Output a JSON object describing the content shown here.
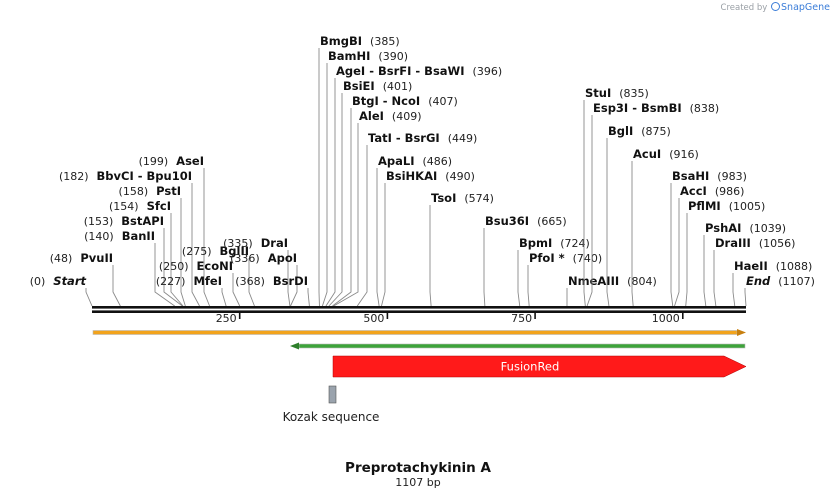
{
  "credit": {
    "prefix": "Created by",
    "brand": "SnapGene"
  },
  "sequence": {
    "name": "Preprotachykinin A",
    "length_label": "1107 bp",
    "length": 1107
  },
  "axis": {
    "ticks": [
      250,
      500,
      750,
      1000
    ]
  },
  "sites": [
    {
      "name": "BmgBI",
      "pos": 385
    },
    {
      "name": "BamHI",
      "pos": 390
    },
    {
      "name": "AgeI - BsrFI - BsaWI",
      "pos": 396
    },
    {
      "name": "BsiEI",
      "pos": 401
    },
    {
      "name": "BtgI - NcoI",
      "pos": 407
    },
    {
      "name": "AleI",
      "pos": 409
    },
    {
      "name": "TatI - BsrGI",
      "pos": 449
    },
    {
      "name": "ApaLI",
      "pos": 486
    },
    {
      "name": "BsiHKAI",
      "pos": 490
    },
    {
      "name": "TsoI",
      "pos": 574
    },
    {
      "name": "Bsu36I",
      "pos": 665
    },
    {
      "name": "BpmI",
      "pos": 724
    },
    {
      "name": "PfoI *",
      "pos": 740
    },
    {
      "name": "NmeAIII",
      "pos": 804
    },
    {
      "name": "StuI",
      "pos": 835
    },
    {
      "name": "Esp3I - BsmBI",
      "pos": 838
    },
    {
      "name": "BglI",
      "pos": 875
    },
    {
      "name": "AcuI",
      "pos": 916
    },
    {
      "name": "BsaHI",
      "pos": 983
    },
    {
      "name": "AccI",
      "pos": 986
    },
    {
      "name": "PflMI",
      "pos": 1005
    },
    {
      "name": "PshAI",
      "pos": 1039
    },
    {
      "name": "DraIII",
      "pos": 1056
    },
    {
      "name": "HaeII",
      "pos": 1088
    },
    {
      "name": "End",
      "pos": 1107,
      "italic": true
    },
    {
      "name": "Start",
      "pos": 0,
      "italic": true
    },
    {
      "name": "PvuII",
      "pos": 48
    },
    {
      "name": "BanII",
      "pos": 140
    },
    {
      "name": "BstAPI",
      "pos": 153
    },
    {
      "name": "SfcI",
      "pos": 154
    },
    {
      "name": "PstI",
      "pos": 158
    },
    {
      "name": "BbvCI - Bpu10I",
      "pos": 182
    },
    {
      "name": "AseI",
      "pos": 199
    },
    {
      "name": "MfeI",
      "pos": 227
    },
    {
      "name": "EcoNI",
      "pos": 250
    },
    {
      "name": "BglII",
      "pos": 275
    },
    {
      "name": "DraI",
      "pos": 335
    },
    {
      "name": "ApoI",
      "pos": 336
    },
    {
      "name": "BsrDI",
      "pos": 368
    }
  ],
  "features": [
    {
      "name": "FusionRed",
      "start": 409,
      "end": 1107,
      "color": "#ff1a1a",
      "direction": "forward"
    },
    {
      "name": "Kozak sequence",
      "start": 400,
      "end": 409,
      "color": "#9aa3ad"
    }
  ],
  "colors": {
    "orf_forward": "#f2a31c",
    "orf_reverse": "#3da33a",
    "axis": "#111111"
  }
}
